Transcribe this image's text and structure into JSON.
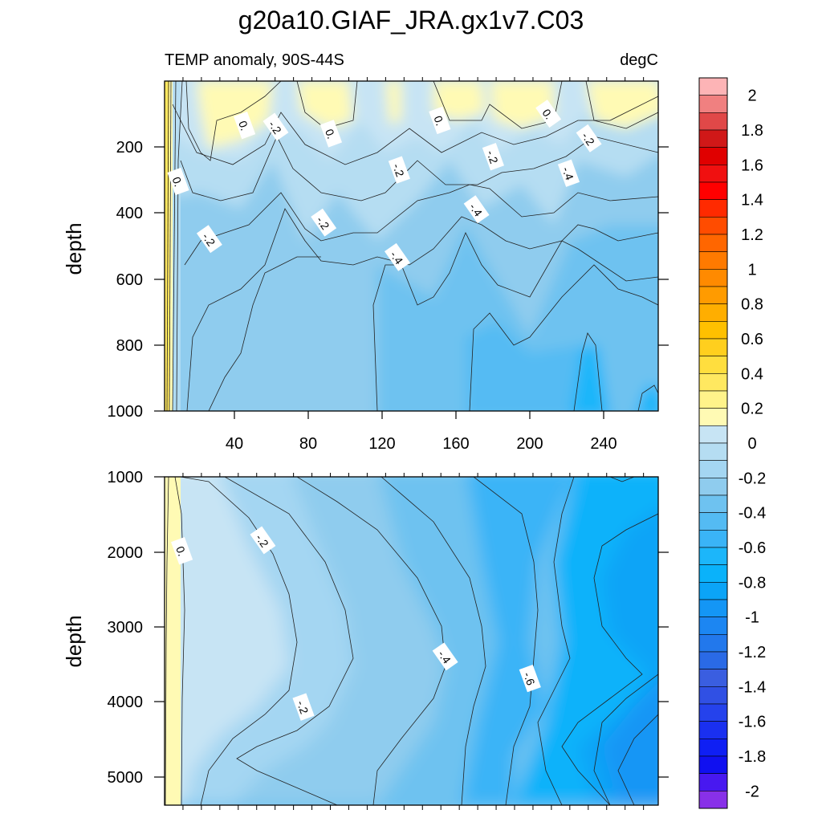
{
  "chart_data": [
    {
      "type": "contour",
      "title": "g20a10.GIAF_JRA.gx1v7.C03",
      "subtitle_left": "TEMP anomaly, 90S-44S",
      "subtitle_right": "degC",
      "ylabel": "depth",
      "xlim": [
        0,
        268
      ],
      "ylim": [
        0,
        1000
      ],
      "y_inverted": true,
      "xticks": [
        "40",
        "80",
        "120",
        "160",
        "200",
        "240"
      ],
      "yticks": [
        "200",
        "400",
        "600",
        "800",
        "1000"
      ],
      "contour_labels": [
        {
          "text": "0.",
          "x": 7,
          "y": 305
        },
        {
          "text": "-.2",
          "x": 24,
          "y": 480
        },
        {
          "text": "0.",
          "x": 43,
          "y": 135
        },
        {
          "text": "-.2",
          "x": 60,
          "y": 140
        },
        {
          "text": "0.",
          "x": 90,
          "y": 160
        },
        {
          "text": "-.2",
          "x": 86,
          "y": 430
        },
        {
          "text": "-.2",
          "x": 127,
          "y": 270
        },
        {
          "text": "-.4",
          "x": 126,
          "y": 535
        },
        {
          "text": "0.",
          "x": 149,
          "y": 120
        },
        {
          "text": "-.4",
          "x": 169,
          "y": 390
        },
        {
          "text": "-.2",
          "x": 178,
          "y": 230
        },
        {
          "text": "0.",
          "x": 208,
          "y": 100
        },
        {
          "text": "-.4",
          "x": 219,
          "y": 280
        },
        {
          "text": "-.2",
          "x": 230,
          "y": 175
        }
      ]
    },
    {
      "type": "contour",
      "ylabel": "depth",
      "xlim": [
        0,
        268
      ],
      "ylim": [
        1000,
        5375
      ],
      "y_inverted": true,
      "yticks": [
        "1000",
        "2000",
        "3000",
        "4000",
        "5000"
      ],
      "contour_labels": [
        {
          "text": "0.",
          "x": 9,
          "y": 1990
        },
        {
          "text": "-.2",
          "x": 53,
          "y": 1850
        },
        {
          "text": "-.2",
          "x": 75,
          "y": 4070
        },
        {
          "text": "-.4",
          "x": 152,
          "y": 3400
        },
        {
          "text": "-.6",
          "x": 198,
          "y": 3690
        }
      ]
    }
  ],
  "colorbar": {
    "levels": [
      "2",
      "1.8",
      "1.6",
      "1.4",
      "1.2",
      "1",
      "0.8",
      "0.6",
      "0.4",
      "0.2",
      "0",
      "-0.2",
      "-0.4",
      "-0.6",
      "-0.8",
      "-1",
      "-1.2",
      "-1.4",
      "-1.6",
      "-1.8",
      "-2"
    ],
    "colors": [
      "#FDB4B6",
      "#F08080",
      "#E04848",
      "#D01818",
      "#E00000",
      "#F01010",
      "#FF0000",
      "#FF2A00",
      "#FF4C00",
      "#FF6600",
      "#FF7A00",
      "#FF8A00",
      "#FF9B00",
      "#FFAE00",
      "#FFC000",
      "#FFCF1E",
      "#FFDE3E",
      "#FFE860",
      "#FFF38A",
      "#FFFAB4",
      "#C7E4F4",
      "#B5DDF2",
      "#A4D6F2",
      "#8FCCEE",
      "#6EC2F0",
      "#54BBF3",
      "#3AB4F7",
      "#1CB6FA",
      "#0AB2FA",
      "#0BA4F7",
      "#1496F5",
      "#1C86F2",
      "#2278EC",
      "#2A6AE6",
      "#3A5EE0",
      "#3050E4",
      "#2542EC",
      "#1A30F0",
      "#0F1FF4",
      "#1010F0",
      "#4818F0",
      "#8830E8"
    ]
  }
}
